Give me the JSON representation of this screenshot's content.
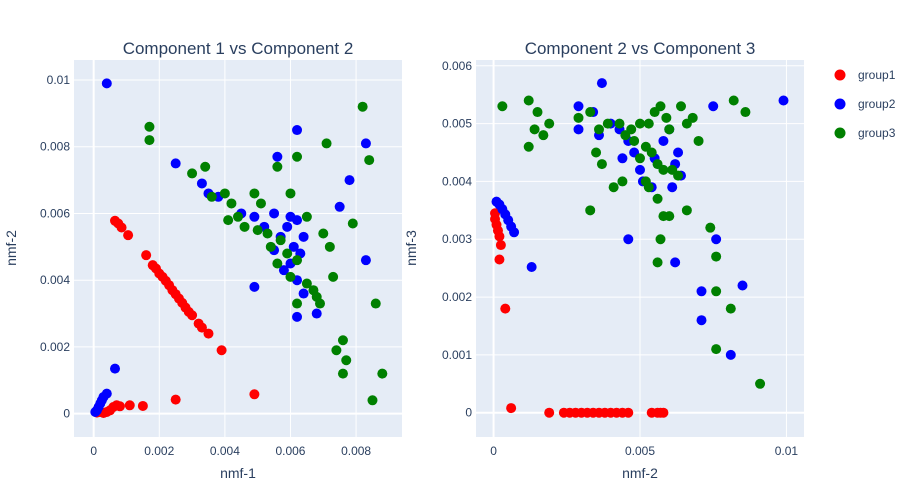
{
  "chart_data": [
    {
      "type": "scatter",
      "title": "Component 1 vs Component 2",
      "xlabel": "nmf-1",
      "ylabel": "nmf-2",
      "xlim": [
        -0.0006,
        0.0094
      ],
      "ylim": [
        -0.0007,
        0.0106
      ],
      "xticks": [
        0,
        0.002,
        0.004,
        0.006,
        0.008
      ],
      "xtick_labels": [
        "0",
        "0.002",
        "0.004",
        "0.006",
        "0.008"
      ],
      "yticks": [
        0,
        0.002,
        0.004,
        0.006,
        0.008,
        0.01
      ],
      "ytick_labels": [
        "0",
        "0.002",
        "0.004",
        "0.006",
        "0.008",
        "0.01"
      ],
      "grid": true,
      "series": [
        {
          "name": "group1",
          "color": "#ff0000",
          "points": [
            [
              0.00065,
              0.00578
            ],
            [
              0.00075,
              0.0057
            ],
            [
              0.00085,
              0.00558
            ],
            [
              0.00105,
              0.00535
            ],
            [
              0.0016,
              0.00475
            ],
            [
              0.0018,
              0.00445
            ],
            [
              0.0019,
              0.00435
            ],
            [
              0.002,
              0.0042
            ],
            [
              0.0021,
              0.0041
            ],
            [
              0.0022,
              0.00398
            ],
            [
              0.0023,
              0.00385
            ],
            [
              0.0024,
              0.0037
            ],
            [
              0.0025,
              0.00358
            ],
            [
              0.0026,
              0.00345
            ],
            [
              0.0027,
              0.00332
            ],
            [
              0.0028,
              0.00318
            ],
            [
              0.0029,
              0.00305
            ],
            [
              0.003,
              0.00295
            ],
            [
              0.0032,
              0.0027
            ],
            [
              0.0033,
              0.00258
            ],
            [
              0.0035,
              0.0024
            ],
            [
              0.0039,
              0.0019
            ],
            [
              0.0049,
              0.00058
            ],
            [
              0.0025,
              0.00042
            ],
            [
              0.0015,
              0.00023
            ],
            [
              0.0011,
              0.00025
            ],
            [
              0.0008,
              0.00022
            ],
            [
              0.0007,
              0.00025
            ],
            [
              0.0006,
              0.0002
            ],
            [
              0.0005,
              0.0001
            ],
            [
              0.0004,
              5e-05
            ],
            [
              0.0003,
              2e-05
            ],
            [
              0.0002,
              5e-05
            ],
            [
              0.0001,
              3e-05
            ]
          ]
        },
        {
          "name": "group2",
          "color": "#0000ff",
          "points": [
            [
              0.0004,
              0.0099
            ],
            [
              0.0062,
              0.0085
            ],
            [
              0.0083,
              0.0081
            ],
            [
              0.0056,
              0.0077
            ],
            [
              0.0025,
              0.0075
            ],
            [
              0.0078,
              0.007
            ],
            [
              0.0033,
              0.0069
            ],
            [
              0.0075,
              0.0062
            ],
            [
              0.0035,
              0.0066
            ],
            [
              0.0038,
              0.0065
            ],
            [
              0.0045,
              0.006
            ],
            [
              0.0049,
              0.0059
            ],
            [
              0.0055,
              0.006
            ],
            [
              0.006,
              0.0059
            ],
            [
              0.0062,
              0.0058
            ],
            [
              0.0052,
              0.0056
            ],
            [
              0.0059,
              0.0056
            ],
            [
              0.0064,
              0.0053
            ],
            [
              0.0057,
              0.0053
            ],
            [
              0.0061,
              0.005
            ],
            [
              0.0055,
              0.0049
            ],
            [
              0.0063,
              0.0048
            ],
            [
              0.006,
              0.0045
            ],
            [
              0.0058,
              0.0043
            ],
            [
              0.0062,
              0.004
            ],
            [
              0.0064,
              0.0036
            ],
            [
              0.0049,
              0.0038
            ],
            [
              0.0068,
              0.003
            ],
            [
              0.0062,
              0.0029
            ],
            [
              0.0083,
              0.0046
            ],
            [
              0.00065,
              0.00135
            ],
            [
              0.0004,
              0.0006
            ],
            [
              0.0003,
              0.0005
            ],
            [
              0.00025,
              0.0004
            ],
            [
              0.0002,
              0.0003
            ],
            [
              0.00015,
              0.0002
            ],
            [
              0.0001,
              0.0001
            ],
            [
              5e-05,
              5e-05
            ]
          ]
        },
        {
          "name": "group3",
          "color": "#008000",
          "points": [
            [
              0.0017,
              0.0086
            ],
            [
              0.0017,
              0.0082
            ],
            [
              0.0082,
              0.0092
            ],
            [
              0.0071,
              0.0081
            ],
            [
              0.0084,
              0.0076
            ],
            [
              0.0062,
              0.0077
            ],
            [
              0.0056,
              0.0074
            ],
            [
              0.003,
              0.0072
            ],
            [
              0.0034,
              0.0074
            ],
            [
              0.0036,
              0.0065
            ],
            [
              0.004,
              0.0066
            ],
            [
              0.0042,
              0.0063
            ],
            [
              0.0049,
              0.0066
            ],
            [
              0.0051,
              0.0063
            ],
            [
              0.006,
              0.0066
            ],
            [
              0.0041,
              0.0058
            ],
            [
              0.0044,
              0.0059
            ],
            [
              0.0046,
              0.0056
            ],
            [
              0.005,
              0.0055
            ],
            [
              0.0053,
              0.0054
            ],
            [
              0.0057,
              0.0052
            ],
            [
              0.0065,
              0.0059
            ],
            [
              0.007,
              0.0054
            ],
            [
              0.0079,
              0.0057
            ],
            [
              0.0072,
              0.005
            ],
            [
              0.0054,
              0.005
            ],
            [
              0.0059,
              0.0048
            ],
            [
              0.0062,
              0.0046
            ],
            [
              0.0056,
              0.0045
            ],
            [
              0.006,
              0.0041
            ],
            [
              0.0065,
              0.0039
            ],
            [
              0.0067,
              0.0037
            ],
            [
              0.0068,
              0.0035
            ],
            [
              0.0069,
              0.0033
            ],
            [
              0.0062,
              0.0033
            ],
            [
              0.0073,
              0.0041
            ],
            [
              0.0086,
              0.0033
            ],
            [
              0.0076,
              0.0022
            ],
            [
              0.0074,
              0.0019
            ],
            [
              0.0077,
              0.0016
            ],
            [
              0.0076,
              0.0012
            ],
            [
              0.0088,
              0.0012
            ],
            [
              0.0085,
              0.0004
            ]
          ]
        }
      ]
    },
    {
      "type": "scatter",
      "title": "Component 2 vs Component 3",
      "xlabel": "nmf-2",
      "ylabel": "nmf-3",
      "xlim": [
        -0.0006,
        0.0106
      ],
      "ylim": [
        -0.00042,
        0.0061
      ],
      "xticks": [
        0,
        0.005,
        0.01
      ],
      "xtick_labels": [
        "0",
        "0.005",
        "0.01"
      ],
      "yticks": [
        0,
        0.001,
        0.002,
        0.003,
        0.004,
        0.005,
        0.006
      ],
      "ytick_labels": [
        "0",
        "0.001",
        "0.002",
        "0.003",
        "0.004",
        "0.005",
        "0.006"
      ],
      "grid": true,
      "series": [
        {
          "name": "group1",
          "color": "#ff0000",
          "points": [
            [
              5e-05,
              0.00345
            ],
            [
              5e-05,
              0.00335
            ],
            [
              0.0001,
              0.00325
            ],
            [
              0.00015,
              0.00315
            ],
            [
              0.0002,
              0.00305
            ],
            [
              0.00025,
              0.0029
            ],
            [
              0.0002,
              0.00265
            ],
            [
              0.0004,
              0.0018
            ],
            [
              0.0006,
              8e-05
            ],
            [
              0.0019,
              0.0
            ],
            [
              0.0024,
              0.0
            ],
            [
              0.0026,
              0.0
            ],
            [
              0.0028,
              0.0
            ],
            [
              0.003,
              0.0
            ],
            [
              0.0032,
              0.0
            ],
            [
              0.0034,
              0.0
            ],
            [
              0.0036,
              0.0
            ],
            [
              0.0038,
              0.0
            ],
            [
              0.004,
              0.0
            ],
            [
              0.0042,
              0.0
            ],
            [
              0.0044,
              0.0
            ],
            [
              0.0046,
              0.0
            ],
            [
              0.0054,
              0.0
            ],
            [
              0.0056,
              0.0
            ],
            [
              0.0057,
              0.0
            ],
            [
              0.0058,
              0.0
            ]
          ]
        },
        {
          "name": "group2",
          "color": "#0000ff",
          "points": [
            [
              0.0001,
              0.00365
            ],
            [
              0.0002,
              0.0036
            ],
            [
              0.0003,
              0.00352
            ],
            [
              0.0004,
              0.00343
            ],
            [
              0.0005,
              0.00333
            ],
            [
              0.0006,
              0.00322
            ],
            [
              0.0007,
              0.00312
            ],
            [
              0.0013,
              0.00252
            ],
            [
              0.0037,
              0.0057
            ],
            [
              0.0029,
              0.0053
            ],
            [
              0.0034,
              0.0052
            ],
            [
              0.0029,
              0.0049
            ],
            [
              0.0036,
              0.0048
            ],
            [
              0.004,
              0.005
            ],
            [
              0.0043,
              0.0049
            ],
            [
              0.0046,
              0.0047
            ],
            [
              0.0048,
              0.0045
            ],
            [
              0.0044,
              0.0044
            ],
            [
              0.005,
              0.0042
            ],
            [
              0.0051,
              0.004
            ],
            [
              0.0055,
              0.0044
            ],
            [
              0.0058,
              0.0047
            ],
            [
              0.006,
              0.0049
            ],
            [
              0.0063,
              0.0045
            ],
            [
              0.0062,
              0.0043
            ],
            [
              0.0064,
              0.0041
            ],
            [
              0.0061,
              0.0039
            ],
            [
              0.0054,
              0.0039
            ],
            [
              0.0075,
              0.0053
            ],
            [
              0.0099,
              0.0054
            ],
            [
              0.0062,
              0.0026
            ],
            [
              0.0046,
              0.003
            ],
            [
              0.0076,
              0.003
            ],
            [
              0.0071,
              0.0021
            ],
            [
              0.0071,
              0.0016
            ],
            [
              0.0085,
              0.0022
            ],
            [
              0.0081,
              0.001
            ]
          ]
        },
        {
          "name": "group3",
          "color": "#008000",
          "points": [
            [
              0.0003,
              0.0053
            ],
            [
              0.0012,
              0.0054
            ],
            [
              0.0015,
              0.0052
            ],
            [
              0.0019,
              0.005
            ],
            [
              0.0014,
              0.0049
            ],
            [
              0.0017,
              0.0048
            ],
            [
              0.0012,
              0.0046
            ],
            [
              0.0029,
              0.0051
            ],
            [
              0.0033,
              0.0052
            ],
            [
              0.0036,
              0.0049
            ],
            [
              0.0039,
              0.005
            ],
            [
              0.0043,
              0.005
            ],
            [
              0.0045,
              0.0048
            ],
            [
              0.0047,
              0.0049
            ],
            [
              0.005,
              0.005
            ],
            [
              0.0053,
              0.005
            ],
            [
              0.0055,
              0.0052
            ],
            [
              0.0057,
              0.0053
            ],
            [
              0.0059,
              0.0051
            ],
            [
              0.006,
              0.0049
            ],
            [
              0.0064,
              0.0053
            ],
            [
              0.0066,
              0.005
            ],
            [
              0.0068,
              0.0051
            ],
            [
              0.007,
              0.0047
            ],
            [
              0.0082,
              0.0054
            ],
            [
              0.0086,
              0.0052
            ],
            [
              0.0048,
              0.0047
            ],
            [
              0.0052,
              0.0046
            ],
            [
              0.0054,
              0.0045
            ],
            [
              0.005,
              0.0044
            ],
            [
              0.0056,
              0.0043
            ],
            [
              0.0058,
              0.0042
            ],
            [
              0.0061,
              0.0042
            ],
            [
              0.0063,
              0.0041
            ],
            [
              0.0052,
              0.004
            ],
            [
              0.0053,
              0.0039
            ],
            [
              0.0044,
              0.004
            ],
            [
              0.0041,
              0.0039
            ],
            [
              0.0037,
              0.0043
            ],
            [
              0.0035,
              0.0045
            ],
            [
              0.0033,
              0.0035
            ],
            [
              0.0056,
              0.0037
            ],
            [
              0.0058,
              0.0034
            ],
            [
              0.0057,
              0.003
            ],
            [
              0.0056,
              0.0026
            ],
            [
              0.0066,
              0.0035
            ],
            [
              0.0074,
              0.0032
            ],
            [
              0.0076,
              0.0027
            ],
            [
              0.0076,
              0.0021
            ],
            [
              0.0081,
              0.0018
            ],
            [
              0.0076,
              0.0011
            ],
            [
              0.0091,
              0.0005
            ],
            [
              0.006,
              0.0034
            ]
          ]
        }
      ]
    }
  ],
  "legend": {
    "placement": "top-right",
    "items": [
      {
        "label": "group1",
        "color": "#ff0000"
      },
      {
        "label": "group2",
        "color": "#0000ff"
      },
      {
        "label": "group3",
        "color": "#008000"
      }
    ]
  },
  "colors": {
    "plot_bg": "#e5ecf6",
    "grid": "#ffffff",
    "text": "#2a3f5f"
  }
}
